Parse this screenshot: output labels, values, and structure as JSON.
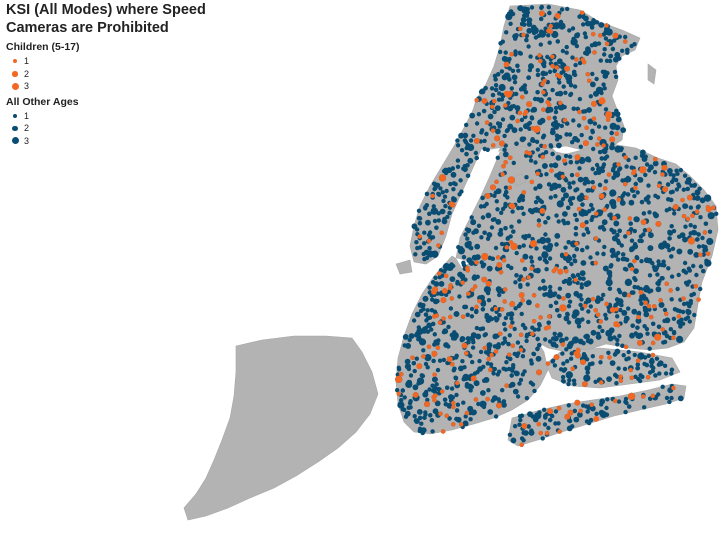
{
  "title_line1": "KSI (All Modes) where Speed",
  "title_line2": "Cameras are Prohibited",
  "legend": {
    "children": {
      "title": "Children (5-17)",
      "color": "#f26722",
      "items": [
        {
          "label": "1"
        },
        {
          "label": "2"
        },
        {
          "label": "3"
        }
      ]
    },
    "others": {
      "title": "All Other Ages",
      "color": "#0a4d73",
      "items": [
        {
          "label": "1"
        },
        {
          "label": "2"
        },
        {
          "label": "3"
        }
      ]
    }
  },
  "land_color": "#b3b3b3",
  "water_color": "#ffffff"
}
